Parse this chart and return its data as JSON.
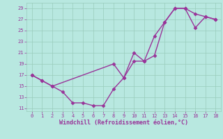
{
  "xlabel": "Windchill (Refroidissement éolien,°C)",
  "bg_color": "#b8e8e0",
  "line_color": "#993399",
  "marker": "D",
  "markersize": 2.5,
  "linewidth": 1.0,
  "line1_x": [
    0,
    1,
    2,
    3,
    4,
    5,
    6,
    7,
    8,
    9,
    10,
    11,
    12,
    13,
    14,
    15,
    16,
    17,
    18
  ],
  "line1_y": [
    17,
    16,
    15,
    14,
    12,
    12,
    11.5,
    11.5,
    14.5,
    16.5,
    19.5,
    19.5,
    20.5,
    26.5,
    29,
    29,
    28,
    27.5,
    27
  ],
  "line2_x": [
    0,
    1,
    2,
    8,
    9,
    10,
    11,
    12,
    13,
    14,
    15,
    16,
    17,
    18
  ],
  "line2_y": [
    17,
    16,
    15,
    19,
    16.5,
    21,
    19.5,
    24,
    26.5,
    29,
    29,
    25.5,
    27.5,
    27
  ],
  "xlim": [
    -0.5,
    18.5
  ],
  "ylim": [
    10.5,
    30.0
  ],
  "yticks": [
    11,
    13,
    15,
    17,
    19,
    21,
    23,
    25,
    27,
    29
  ],
  "xticks": [
    0,
    1,
    2,
    3,
    4,
    5,
    6,
    7,
    8,
    9,
    10,
    11,
    12,
    13,
    14,
    15,
    16,
    17,
    18
  ],
  "grid_color": "#99ccbb",
  "tick_color": "#993399",
  "label_color": "#993399",
  "tick_fontsize": 5.0,
  "xlabel_fontsize": 6.0
}
